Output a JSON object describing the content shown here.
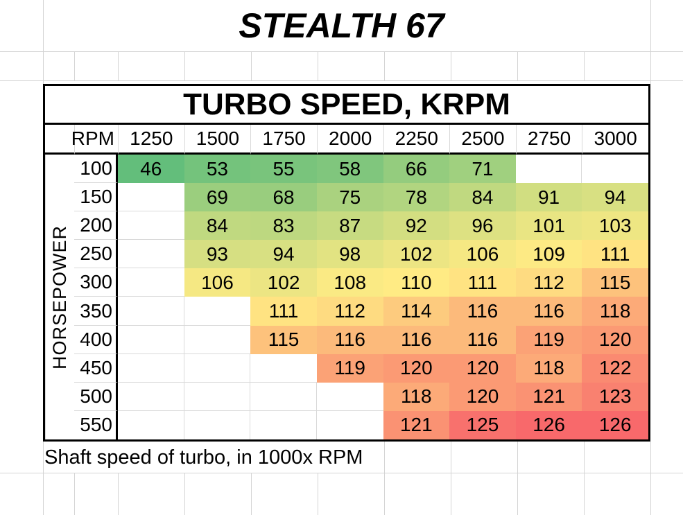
{
  "sheet_title": "STEALTH 67",
  "footnote": "Shaft speed of turbo, in 1000x RPM",
  "chart_data": {
    "type": "heatmap",
    "title": "TURBO SPEED, KRPM",
    "x_axis_label": "RPM",
    "x_categories": [
      "1250",
      "1500",
      "1750",
      "2000",
      "2250",
      "2500",
      "2750",
      "3000"
    ],
    "y_axis_label": "HORSEPOWER",
    "y_categories": [
      "100",
      "150",
      "200",
      "250",
      "300",
      "350",
      "400",
      "450",
      "500",
      "550"
    ],
    "values": [
      [
        46,
        53,
        55,
        58,
        66,
        71,
        null,
        null
      ],
      [
        null,
        69,
        68,
        75,
        78,
        84,
        91,
        94
      ],
      [
        null,
        84,
        83,
        87,
        92,
        96,
        101,
        103
      ],
      [
        null,
        93,
        94,
        98,
        102,
        106,
        109,
        111
      ],
      [
        null,
        106,
        102,
        108,
        110,
        111,
        112,
        115
      ],
      [
        null,
        null,
        111,
        112,
        114,
        116,
        116,
        118
      ],
      [
        null,
        null,
        115,
        116,
        116,
        116,
        119,
        120
      ],
      [
        null,
        null,
        null,
        119,
        120,
        120,
        118,
        122
      ],
      [
        null,
        null,
        null,
        null,
        118,
        120,
        121,
        123
      ],
      [
        null,
        null,
        null,
        null,
        121,
        125,
        126,
        126
      ]
    ],
    "value_range": [
      46,
      126
    ],
    "color_scale": {
      "min": {
        "value": 46,
        "color": "#63BE7B"
      },
      "mid": {
        "value": 110,
        "color": "#FFEB84"
      },
      "max": {
        "value": 126,
        "color": "#F8696B"
      }
    },
    "note": "Shaft speed of turbo, in 1000x RPM",
    "grid": true,
    "legend": "none"
  },
  "colors": {
    "gridline": "#d4d4d4",
    "table_border": "#000000",
    "background": "#ffffff"
  }
}
